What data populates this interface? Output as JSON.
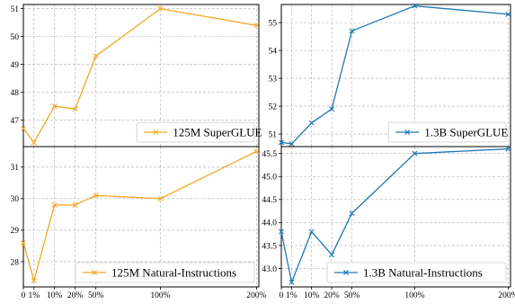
{
  "chart_data": [
    {
      "type": "line",
      "color": "#f5a623",
      "legend_label": "125M SuperGLUE",
      "legend_loc": "lower right",
      "x_ticks": [
        "0",
        "1%",
        "10%",
        "20%",
        "50%",
        "100%",
        "200%"
      ],
      "y_ticks": [
        "47",
        "48",
        "49",
        "50",
        "51"
      ],
      "ylim": [
        46.05,
        51.15
      ],
      "x": [
        0,
        1,
        10,
        20,
        50,
        100,
        200
      ],
      "y": [
        46.7,
        46.2,
        47.5,
        47.4,
        49.3,
        51.0,
        50.4
      ],
      "grid": true
    },
    {
      "type": "line",
      "color": "#1f77b4",
      "legend_label": "1.3B SuperGLUE",
      "legend_loc": "lower right",
      "x_ticks": [
        "0",
        "1%",
        "10%",
        "20%",
        "50%",
        "100%",
        "200%"
      ],
      "y_ticks": [
        "51",
        "52",
        "53",
        "54",
        "55"
      ],
      "ylim": [
        50.55,
        55.65
      ],
      "x": [
        0,
        1,
        10,
        20,
        50,
        100,
        200
      ],
      "y": [
        50.7,
        50.65,
        51.4,
        51.9,
        54.7,
        55.6,
        55.3
      ],
      "grid": true
    },
    {
      "type": "line",
      "color": "#f5a623",
      "legend_label": "125M Natural-Instructions",
      "legend_loc": "lower right",
      "x_ticks": [
        "0",
        "1%",
        "10%",
        "20%",
        "50%",
        "100%",
        "200%"
      ],
      "y_ticks": [
        "28",
        "29",
        "30",
        "31"
      ],
      "ylim": [
        27.2,
        31.65
      ],
      "x": [
        0,
        1,
        10,
        20,
        50,
        100,
        200
      ],
      "y": [
        28.6,
        27.4,
        29.8,
        29.8,
        30.1,
        30.0,
        31.5
      ],
      "grid": true
    },
    {
      "type": "line",
      "color": "#1f77b4",
      "legend_label": "1.3B Natural-Instructions",
      "legend_loc": "lower right",
      "x_ticks": [
        "0",
        "1%",
        "10%",
        "20%",
        "50%",
        "100%",
        "200%"
      ],
      "y_ticks": [
        "43.0",
        "43.5",
        "44.0",
        "44.5",
        "45.0",
        "45.5"
      ],
      "ylim": [
        42.6,
        45.65
      ],
      "x": [
        0,
        1,
        10,
        20,
        50,
        100,
        200
      ],
      "y": [
        43.8,
        42.7,
        43.8,
        43.3,
        44.2,
        45.5,
        45.6
      ],
      "grid": true
    }
  ]
}
